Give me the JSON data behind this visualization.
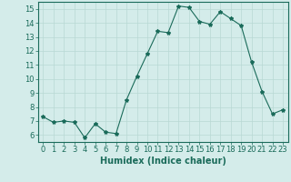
{
  "x": [
    0,
    1,
    2,
    3,
    4,
    5,
    6,
    7,
    8,
    9,
    10,
    11,
    12,
    13,
    14,
    15,
    16,
    17,
    18,
    19,
    20,
    21,
    22,
    23
  ],
  "y": [
    7.3,
    6.9,
    7.0,
    6.9,
    5.8,
    6.8,
    6.2,
    6.1,
    8.5,
    10.2,
    11.8,
    13.4,
    13.3,
    15.2,
    15.1,
    14.1,
    13.9,
    14.8,
    14.3,
    13.8,
    11.2,
    9.1,
    7.5,
    7.8
  ],
  "line_color": "#1a6b5a",
  "marker": "*",
  "marker_size": 3,
  "bg_color": "#d4ecea",
  "grid_color": "#b8d8d4",
  "xlabel": "Humidex (Indice chaleur)",
  "xlim": [
    -0.5,
    23.5
  ],
  "ylim": [
    5.5,
    15.5
  ],
  "yticks": [
    6,
    7,
    8,
    9,
    10,
    11,
    12,
    13,
    14,
    15
  ],
  "xticks": [
    0,
    1,
    2,
    3,
    4,
    5,
    6,
    7,
    8,
    9,
    10,
    11,
    12,
    13,
    14,
    15,
    16,
    17,
    18,
    19,
    20,
    21,
    22,
    23
  ],
  "tick_color": "#1a6b5a",
  "axis_color": "#1a6b5a",
  "xlabel_fontsize": 7,
  "tick_fontsize": 6
}
